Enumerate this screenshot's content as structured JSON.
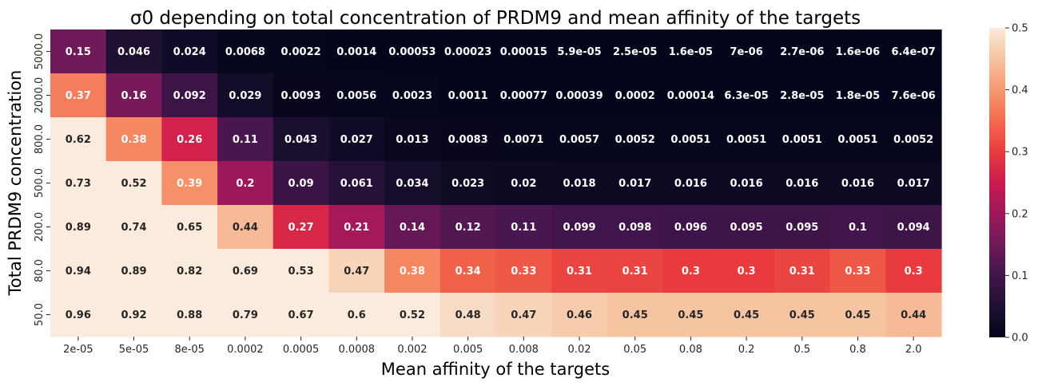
{
  "chart_data": {
    "type": "heatmap",
    "title": "σ0 depending on total concentration of PRDM9 and mean affinity of the targets",
    "xlabel": "Mean affinity of the targets",
    "ylabel": "Total PRDM9 concentration",
    "x_categories": [
      "2e-05",
      "5e-05",
      "8e-05",
      "0.0002",
      "0.0005",
      "0.0008",
      "0.002",
      "0.005",
      "0.008",
      "0.02",
      "0.05",
      "0.08",
      "0.2",
      "0.5",
      "0.8",
      "2.0"
    ],
    "y_categories": [
      "5000.0",
      "2000.0",
      "800.0",
      "500.0",
      "200.0",
      "80.0",
      "50.0"
    ],
    "values": [
      [
        0.15,
        0.046,
        0.024,
        0.0068,
        0.0022,
        0.0014,
        0.00053,
        0.00023,
        0.00015,
        5.9e-05,
        2.5e-05,
        1.6e-05,
        7e-06,
        2.7e-06,
        1.6e-06,
        6.4e-07
      ],
      [
        0.37,
        0.16,
        0.092,
        0.029,
        0.0093,
        0.0056,
        0.0023,
        0.0011,
        0.00077,
        0.00039,
        0.0002,
        0.00014,
        6.3e-05,
        2.8e-05,
        1.8e-05,
        7.6e-06
      ],
      [
        0.62,
        0.38,
        0.26,
        0.11,
        0.043,
        0.027,
        0.013,
        0.0083,
        0.0071,
        0.0057,
        0.0052,
        0.0051,
        0.0051,
        0.0051,
        0.0051,
        0.0052
      ],
      [
        0.73,
        0.52,
        0.39,
        0.2,
        0.09,
        0.061,
        0.034,
        0.023,
        0.02,
        0.018,
        0.017,
        0.016,
        0.016,
        0.016,
        0.016,
        0.017
      ],
      [
        0.89,
        0.74,
        0.65,
        0.44,
        0.27,
        0.21,
        0.14,
        0.12,
        0.11,
        0.099,
        0.098,
        0.096,
        0.095,
        0.095,
        0.1,
        0.094
      ],
      [
        0.94,
        0.89,
        0.82,
        0.69,
        0.53,
        0.47,
        0.38,
        0.34,
        0.33,
        0.31,
        0.31,
        0.3,
        0.3,
        0.31,
        0.33,
        0.3
      ],
      [
        0.96,
        0.92,
        0.88,
        0.79,
        0.67,
        0.6,
        0.52,
        0.48,
        0.47,
        0.46,
        0.45,
        0.45,
        0.45,
        0.45,
        0.45,
        0.44
      ]
    ],
    "labels": [
      [
        "0.15",
        "0.046",
        "0.024",
        "0.0068",
        "0.0022",
        "0.0014",
        "0.00053",
        "0.00023",
        "0.00015",
        "5.9e-05",
        "2.5e-05",
        "1.6e-05",
        "7e-06",
        "2.7e-06",
        "1.6e-06",
        "6.4e-07"
      ],
      [
        "0.37",
        "0.16",
        "0.092",
        "0.029",
        "0.0093",
        "0.0056",
        "0.0023",
        "0.0011",
        "0.00077",
        "0.00039",
        "0.0002",
        "0.00014",
        "6.3e-05",
        "2.8e-05",
        "1.8e-05",
        "7.6e-06"
      ],
      [
        "0.62",
        "0.38",
        "0.26",
        "0.11",
        "0.043",
        "0.027",
        "0.013",
        "0.0083",
        "0.0071",
        "0.0057",
        "0.0052",
        "0.0051",
        "0.0051",
        "0.0051",
        "0.0051",
        "0.0052"
      ],
      [
        "0.73",
        "0.52",
        "0.39",
        "0.2",
        "0.09",
        "0.061",
        "0.034",
        "0.023",
        "0.02",
        "0.018",
        "0.017",
        "0.016",
        "0.016",
        "0.016",
        "0.016",
        "0.017"
      ],
      [
        "0.89",
        "0.74",
        "0.65",
        "0.44",
        "0.27",
        "0.21",
        "0.14",
        "0.12",
        "0.11",
        "0.099",
        "0.098",
        "0.096",
        "0.095",
        "0.095",
        "0.1",
        "0.094"
      ],
      [
        "0.94",
        "0.89",
        "0.82",
        "0.69",
        "0.53",
        "0.47",
        "0.38",
        "0.34",
        "0.33",
        "0.31",
        "0.31",
        "0.3",
        "0.3",
        "0.31",
        "0.33",
        "0.3"
      ],
      [
        "0.96",
        "0.92",
        "0.88",
        "0.79",
        "0.67",
        "0.6",
        "0.52",
        "0.48",
        "0.47",
        "0.46",
        "0.45",
        "0.45",
        "0.45",
        "0.45",
        "0.45",
        "0.44"
      ]
    ],
    "colorbar": {
      "vmin": 0.0,
      "vmax": 0.5,
      "ticks": [
        "0.0",
        "0.1",
        "0.2",
        "0.3",
        "0.4",
        "0.5"
      ],
      "colormap": "rocket"
    }
  }
}
